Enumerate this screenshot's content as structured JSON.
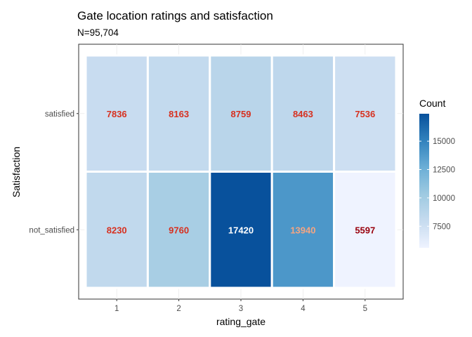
{
  "chart_data": {
    "type": "heatmap",
    "title": "Gate location ratings and satisfaction",
    "subtitle": "N=95,704",
    "xlabel": "rating_gate",
    "ylabel": "Satisfaction",
    "x_categories": [
      "1",
      "2",
      "3",
      "4",
      "5"
    ],
    "y_categories": [
      "not_satisfied",
      "satisfied"
    ],
    "values": {
      "satisfied": [
        7836,
        8163,
        8759,
        8463,
        7536
      ],
      "not_satisfied": [
        8230,
        9760,
        17420,
        13940,
        5597
      ]
    },
    "legend": {
      "title": "Count",
      "ticks": [
        "7500",
        "10000",
        "12500",
        "15000"
      ],
      "tick_values": [
        7500,
        10000,
        12500,
        15000
      ],
      "range": [
        5597,
        17420
      ],
      "colors": [
        "#eff3ff",
        "#c6dbef",
        "#9ecae1",
        "#6baed6",
        "#3182bd",
        "#08519c"
      ]
    },
    "grid": true
  }
}
